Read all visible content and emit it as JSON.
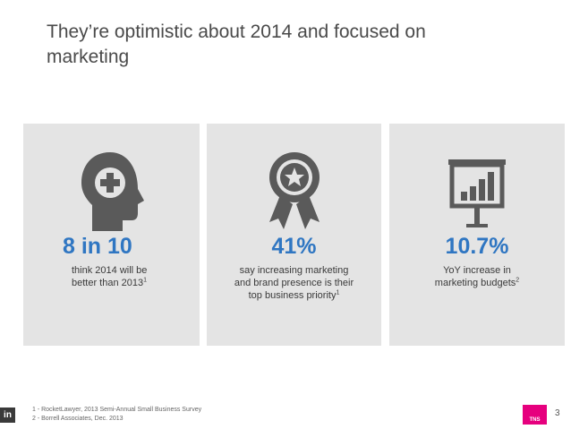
{
  "slide": {
    "title": "They’re optimistic about 2014 and focused on marketing",
    "page_number": "3",
    "logo_text": "TNS",
    "linkedin_badge": "in"
  },
  "stats": [
    {
      "icon": "head-plus-icon",
      "value": "8 in 10",
      "line1": "think 2014 will be",
      "line2": "better than 2013",
      "ref": "1",
      "line3": ""
    },
    {
      "icon": "award-ribbon-icon",
      "value": "41%",
      "line1": "say increasing marketing",
      "line2": "and brand presence is their",
      "line3": "top business priority",
      "ref": "1"
    },
    {
      "icon": "presentation-chart-icon",
      "value": "10.7%",
      "line1": "YoY increase in",
      "line2": "marketing budgets",
      "ref": "2",
      "line3": ""
    }
  ],
  "footnotes": [
    "1 - RocketLawyer, 2013 Semi-Annual Small Business Survey",
    "2 - Borrell Associates, Dec. 2013"
  ],
  "colors": {
    "accent": "#2f76c2",
    "panel": "#e4e4e4",
    "icon": "#5a5a5a",
    "logo": "#e6007e"
  }
}
